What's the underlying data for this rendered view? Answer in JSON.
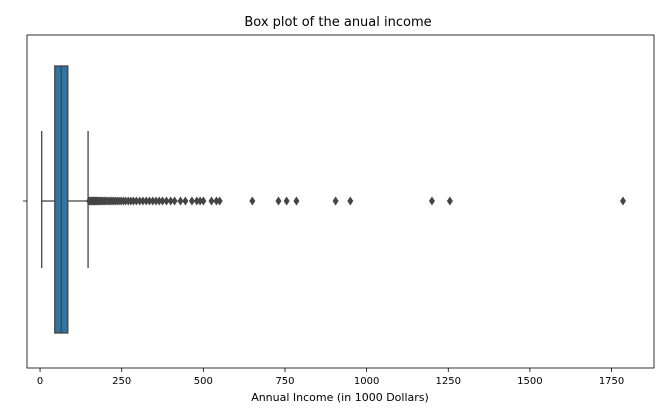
{
  "chart_data": {
    "type": "box",
    "orientation": "horizontal",
    "title": "Box plot of the anual income",
    "xlabel": "Annual Income (in 1000 Dollars)",
    "ylabel": "",
    "xlim": [
      -40,
      1880
    ],
    "xticks": [
      0,
      250,
      500,
      750,
      1000,
      1250,
      1500,
      1750
    ],
    "tick_labels": [
      "0",
      "250",
      "500",
      "750",
      "1000",
      "1250",
      "1500",
      "1750"
    ],
    "grid": false,
    "box": {
      "color": "#3274a1",
      "whisker_low": 5,
      "q1": 45,
      "median": 65,
      "q3": 85,
      "whisker_high": 147
    },
    "outliers": [
      150,
      153,
      156,
      159,
      162,
      165,
      168,
      171,
      174,
      177,
      180,
      184,
      188,
      192,
      196,
      200,
      205,
      210,
      215,
      220,
      225,
      230,
      236,
      242,
      248,
      255,
      262,
      270,
      278,
      286,
      295,
      305,
      315,
      325,
      335,
      345,
      355,
      365,
      375,
      387,
      400,
      412,
      430,
      445,
      465,
      480,
      490,
      500,
      525,
      540,
      550,
      650,
      730,
      755,
      785,
      905,
      950,
      1200,
      1255,
      1785
    ]
  }
}
